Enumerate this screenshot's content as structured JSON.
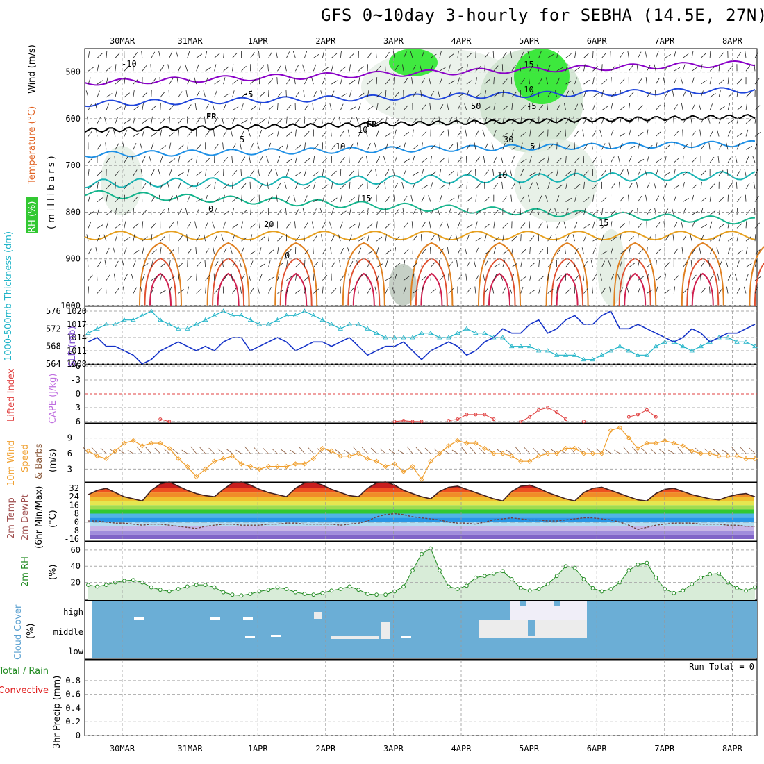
{
  "title": "GFS 0~10day 3-hourly for SEBHA (14.5E, 27N)",
  "dates": [
    "30MAR",
    "31MAR",
    "1APR",
    "2APR",
    "3APR",
    "4APR",
    "5APR",
    "6APR",
    "7APR",
    "8APR"
  ],
  "colors": {
    "purple": "#8a00c8",
    "blue": "#2046dc",
    "lightblue": "#1e90e6",
    "cyan": "#18b4b4",
    "teal": "#14b48c",
    "orange": "#e6a020",
    "red": "#e04020",
    "green": "#32c832",
    "slp": "#1432c8",
    "thick": "#20b4c8",
    "wind": "#f0a030",
    "rh2m": "#228b22",
    "cloud": "#6baed6"
  },
  "chart_data": [
    {
      "type": "contour",
      "panel": "upper-air",
      "ylabel_parts": {
        "rh": "RH (%)",
        "temp": "Temperature (°C)",
        "wind": "Wind (m/s)",
        "axis": "(millibars)"
      },
      "y_ticks": [
        "500",
        "600",
        "700",
        "800",
        "900",
        "1000"
      ],
      "ylim": [
        1000,
        450
      ],
      "contour_labels": [
        "-10",
        "-5",
        "FR",
        "5",
        "10",
        "15",
        "20",
        "-15",
        "-10",
        "-5",
        "FR",
        "5",
        "10",
        "15",
        "10",
        "30",
        "50",
        "0",
        "0"
      ]
    },
    {
      "type": "line",
      "panel": "thickness-slp",
      "ylabel_parts": {
        "thick": "1000-500mb Thickness (dm)",
        "slp": "SLP (mb)"
      },
      "left_ticks": [
        "564",
        "568",
        "572",
        "576"
      ],
      "right_ticks": [
        "1008",
        "1011",
        "1014",
        "1017",
        "1020"
      ],
      "series": [
        {
          "name": "SLP (mb)",
          "values": [
            1013,
            1014,
            1012,
            1012,
            1011,
            1010,
            1008,
            1009,
            1011,
            1012,
            1013,
            1012,
            1011,
            1012,
            1011,
            1013,
            1014,
            1014,
            1011,
            1012,
            1013,
            1014,
            1013,
            1011,
            1012,
            1013,
            1013,
            1012,
            1013,
            1014,
            1012,
            1010,
            1011,
            1012,
            1012,
            1013,
            1011,
            1009,
            1011,
            1012,
            1013,
            1012,
            1010,
            1011,
            1013,
            1014,
            1016,
            1015,
            1015,
            1017,
            1018,
            1015,
            1016,
            1018,
            1019,
            1017,
            1017,
            1019,
            1020,
            1016,
            1016,
            1017,
            1016,
            1015,
            1014,
            1013,
            1014,
            1016,
            1015,
            1013,
            1014,
            1015,
            1015,
            1016,
            1017
          ]
        },
        {
          "name": "Thickness (dm)",
          "values": [
            571,
            572,
            573,
            573,
            574,
            574,
            575,
            576,
            574,
            573,
            572,
            572,
            573,
            574,
            575,
            576,
            575,
            575,
            574,
            573,
            573,
            574,
            575,
            575,
            576,
            575,
            574,
            573,
            572,
            573,
            573,
            572,
            571,
            570,
            570,
            570,
            570,
            571,
            571,
            570,
            570,
            571,
            572,
            571,
            571,
            570,
            570,
            568,
            568,
            568,
            567,
            567,
            566,
            566,
            566,
            565,
            565,
            566,
            567,
            568,
            567,
            566,
            566,
            568,
            569,
            569,
            568,
            567,
            568,
            569,
            570,
            570,
            569,
            569,
            568
          ]
        }
      ]
    },
    {
      "type": "line",
      "panel": "lifted-index-cape",
      "ylabel_parts": {
        "li": "Lifted Index",
        "cape": "CAPE (J/kg)"
      },
      "y_ticks": [
        "-6",
        "-3",
        "0",
        "3",
        "6"
      ],
      "series": [
        {
          "name": "Lifted Index",
          "values": [
            null,
            null,
            null,
            null,
            null,
            null,
            null,
            null,
            5.5,
            6,
            null,
            null,
            null,
            null,
            null,
            null,
            null,
            null,
            null,
            null,
            null,
            null,
            null,
            null,
            null,
            null,
            null,
            null,
            null,
            null,
            null,
            null,
            null,
            null,
            6,
            5.8,
            6,
            6,
            null,
            null,
            5.8,
            5.5,
            4.5,
            4.5,
            4.5,
            5.5,
            null,
            null,
            6,
            5,
            3.5,
            3,
            4,
            5.5,
            null,
            6,
            null,
            null,
            null,
            null,
            5,
            4.5,
            3.5,
            5,
            null,
            null,
            null,
            null,
            null,
            null,
            null,
            null,
            null,
            null,
            null
          ]
        }
      ]
    },
    {
      "type": "line",
      "panel": "10m-wind",
      "ylabel_parts": {
        "a": "10m Wind",
        "b": "Speed",
        "c": "& Barbs",
        "d": "(m/s)"
      },
      "y_ticks": [
        "3",
        "6",
        "9"
      ],
      "series": [
        {
          "name": "10m Wind Speed",
          "values": [
            6.5,
            5.5,
            5,
            6.5,
            8,
            8.5,
            7.5,
            8,
            8,
            7,
            5,
            3.5,
            1.5,
            3,
            4.5,
            5,
            5.5,
            4,
            3.5,
            3,
            3.5,
            3.5,
            3.5,
            4,
            4,
            5,
            7,
            6.5,
            5.5,
            5.5,
            6,
            5,
            4.5,
            3.5,
            4,
            2.5,
            3.5,
            1,
            4.5,
            6,
            7.5,
            8.5,
            8,
            8,
            7,
            6,
            6,
            5.5,
            4.5,
            4.5,
            5.5,
            6,
            6,
            7,
            7,
            6,
            6,
            6,
            10.5,
            11,
            9,
            7,
            8,
            8,
            8.5,
            8,
            7.5,
            6.5,
            6,
            6,
            5.5,
            5.5,
            5.5,
            5,
            5
          ]
        }
      ]
    },
    {
      "type": "line",
      "panel": "2m-temp",
      "ylabel_parts": {
        "a": "2m Temp",
        "b": "2m DewPt",
        "c": "(6hr Min/Max)",
        "d": "(°C)"
      },
      "y_ticks": [
        "-16",
        "-8",
        "0",
        "8",
        "16",
        "24",
        "32"
      ],
      "series": [
        {
          "name": "2m Temp",
          "values": [
            26,
            30,
            32,
            28,
            24,
            22,
            20,
            30,
            36,
            38,
            34,
            30,
            27,
            25,
            24,
            31,
            37,
            38,
            35,
            31,
            28,
            26,
            24,
            32,
            37,
            38,
            35,
            31,
            28,
            25,
            24,
            32,
            37,
            38,
            35,
            30,
            27,
            24,
            22,
            29,
            33,
            34,
            31,
            28,
            25,
            22,
            20,
            29,
            34,
            35,
            32,
            28,
            25,
            22,
            20,
            28,
            32,
            33,
            30,
            27,
            24,
            21,
            20,
            27,
            31,
            32,
            29,
            26,
            24,
            22,
            21,
            24,
            26,
            27,
            24
          ]
        },
        {
          "name": "2m DewPt",
          "values": [
            1,
            1,
            0,
            -1,
            -1,
            -2,
            -3,
            -2,
            -2,
            -3,
            -4,
            -5,
            -6,
            -4,
            -3,
            -2,
            -2,
            -3,
            -3,
            -3,
            -2,
            -2,
            -1,
            -1,
            -2,
            -2,
            -2,
            -2,
            -3,
            -2,
            -1,
            1,
            5,
            7,
            8,
            7,
            5,
            4,
            3,
            2,
            0,
            -1,
            -1,
            -2,
            0,
            2,
            3,
            4,
            3,
            2,
            2,
            1,
            1,
            2,
            3,
            4,
            4,
            3,
            2,
            0,
            -3,
            -7,
            -5,
            -3,
            -2,
            -1,
            -1,
            -1,
            -2,
            -2,
            -2,
            -3,
            -3,
            -4,
            -4
          ]
        }
      ]
    },
    {
      "type": "area",
      "panel": "2m-rh",
      "ylabel_parts": {
        "a": "2m RH",
        "b": "(%)"
      },
      "y_ticks": [
        "20",
        "40",
        "60"
      ],
      "series": [
        {
          "name": "2m RH",
          "values": [
            17,
            15,
            17,
            20,
            22,
            23,
            20,
            14,
            11,
            9,
            12,
            15,
            17,
            17,
            14,
            8,
            5,
            4,
            6,
            9,
            11,
            14,
            12,
            8,
            6,
            5,
            7,
            10,
            12,
            15,
            11,
            6,
            5,
            5,
            9,
            15,
            35,
            55,
            62,
            35,
            15,
            12,
            16,
            26,
            28,
            31,
            34,
            24,
            13,
            10,
            12,
            18,
            28,
            40,
            38,
            24,
            13,
            9,
            12,
            20,
            35,
            42,
            44,
            26,
            12,
            7,
            10,
            18,
            26,
            30,
            31,
            20,
            13,
            10,
            14
          ]
        }
      ]
    },
    {
      "type": "heatmap",
      "panel": "cloud-cover",
      "ylabel_parts": {
        "a": "Cloud Cover",
        "b": "(%)"
      },
      "y_ticks": [
        "high",
        "middle",
        "low"
      ]
    },
    {
      "type": "bar",
      "panel": "precip",
      "ylabel_parts": {
        "a": "3hr Precip (mm)",
        "total": "Total / Rain",
        "conv": "Convective"
      },
      "y_ticks": [
        "0",
        "0.2",
        "0.4",
        "0.6",
        "0.8"
      ],
      "annotation": "Run Total = 0",
      "values": []
    }
  ]
}
